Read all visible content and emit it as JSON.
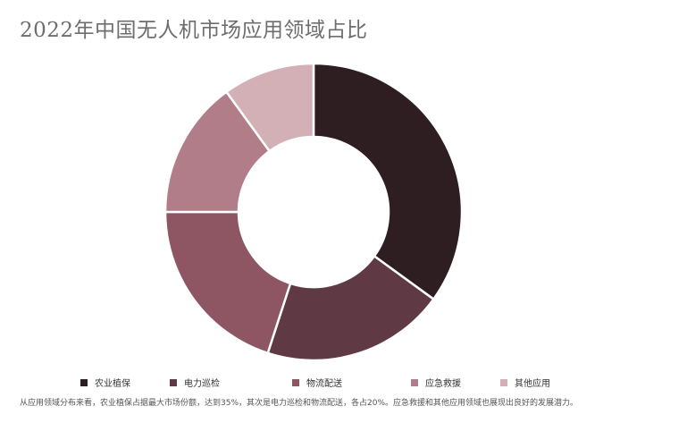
{
  "chart_data": {
    "type": "pie",
    "variant": "donut",
    "title": "2022年中国无人机市场应用领域占比",
    "categories": [
      "农业植保",
      "电力巡检",
      "物流配送",
      "应急救援",
      "其他应用"
    ],
    "values": [
      35,
      20,
      20,
      15,
      10
    ],
    "unit": "%",
    "colors": [
      "#2e1d21",
      "#5f3a45",
      "#8e5562",
      "#b17d88",
      "#d2b0b6"
    ],
    "legend_position": "bottom",
    "note": "从应用领域分布来看，农业植保占据最大市场份额，达到35%，其次是电力巡检和物流配送，各占20%。应急救援和其他应用领域也展现出良好的发展潜力。"
  }
}
